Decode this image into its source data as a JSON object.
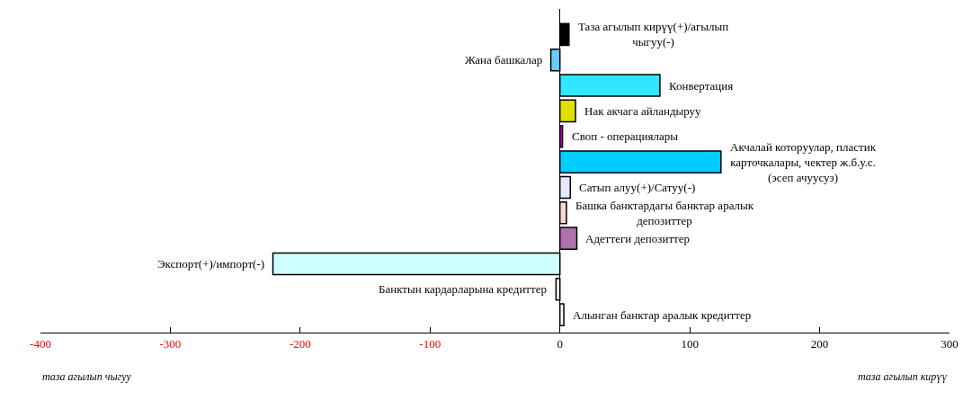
{
  "chart_data": {
    "type": "bar",
    "orientation": "horizontal",
    "categories": [
      "Таза агылып кирүү(+)/агылып чыгуу(-)",
      "Жана башкалар",
      "Конвертация",
      "Нак акчага айландыруу",
      "Своп - операциялары",
      "Акчалай которуулар, пластик карточкалары, чектер ж.б.у.с. (эсеп ачуусуз)",
      "Сатып алуу(+)/Сатуу(-)",
      "Башка банктардагы банктар аралык депозиттер",
      "Адеттеги депозиттер",
      "Экспорт(+)/импорт(-)",
      "Банктын кардарларына кредиттер",
      "Алынган банктар аралык кредиттер"
    ],
    "values": [
      7,
      -7,
      77,
      12,
      2,
      124,
      8,
      5,
      13,
      -221,
      -3,
      3
    ],
    "colors": [
      "#000000",
      "#66ccff",
      "#33e6ff",
      "#e0e000",
      "#cc00cc",
      "#00ccff",
      "#e6e6ff",
      "#ffd6d6",
      "#b070b0",
      "#ccffff",
      "#f2f2f2",
      "#ffffff"
    ],
    "xlim": [
      -400,
      300
    ],
    "xticks": [
      -400,
      -300,
      -200,
      -100,
      0,
      100,
      200,
      300
    ],
    "legend": false,
    "annotations": [
      "таза агылып чыгуу",
      "таза агылып кирүү"
    ]
  }
}
